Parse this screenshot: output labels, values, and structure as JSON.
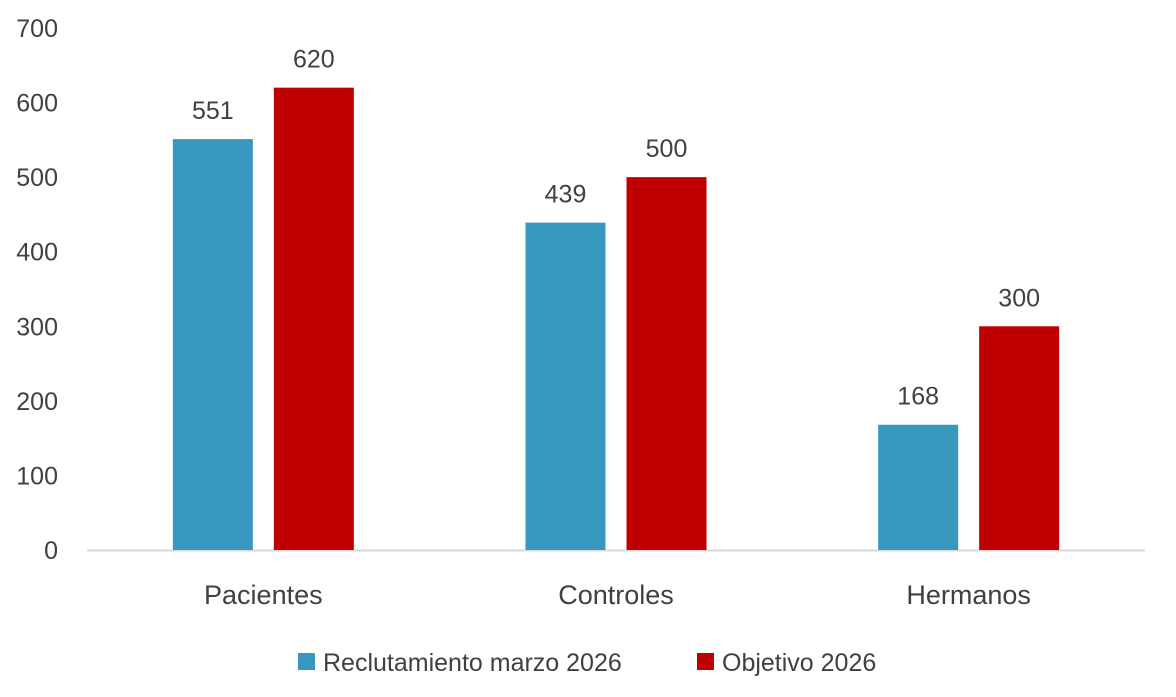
{
  "chart_data": {
    "type": "bar",
    "title": "",
    "xlabel": "",
    "ylabel": "",
    "categories": [
      "Pacientes",
      "Controles",
      "Hermanos"
    ],
    "series": [
      {
        "name": "Reclutamiento marzo 2026",
        "values": [
          551,
          439,
          168
        ],
        "color": "#3797BD"
      },
      {
        "name": "Objetivo 2026",
        "values": [
          620,
          500,
          300
        ],
        "color": "#C00000"
      }
    ],
    "ylim": [
      0,
      700
    ],
    "yticks": [
      "0",
      "100",
      "200",
      "300",
      "400",
      "500",
      "600",
      "700"
    ],
    "grid": false,
    "data_labels": true,
    "legend_position": "bottom"
  }
}
